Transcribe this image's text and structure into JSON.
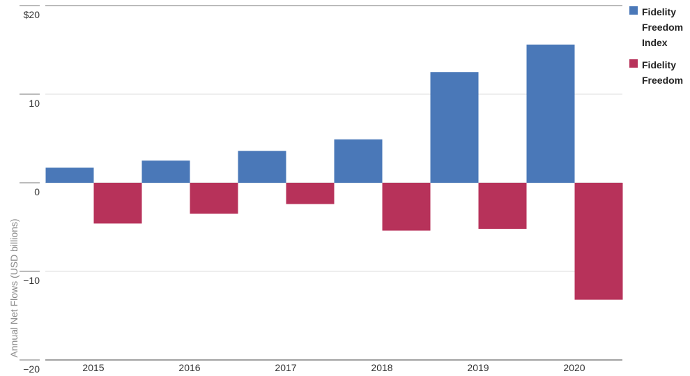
{
  "chart_data": {
    "type": "bar",
    "y_label": "Annual Net Flows (USD billions)",
    "categories": [
      "2015",
      "2016",
      "2017",
      "2018",
      "2019",
      "2020"
    ],
    "series": [
      {
        "name": "Fidelity Freedom Index",
        "color": "#4a78b8",
        "values": [
          1.7,
          2.5,
          3.6,
          4.9,
          12.5,
          15.6
        ]
      },
      {
        "name": "Fidelity Freedom",
        "color": "#b7325a",
        "values": [
          -4.6,
          -3.5,
          -2.4,
          -5.4,
          -5.2,
          -13.2
        ]
      }
    ],
    "ylim": [
      -20,
      20
    ],
    "yticks": [
      {
        "value": -20,
        "label": "−20"
      },
      {
        "value": -10,
        "label": "−10"
      },
      0,
      10,
      {
        "value": 20,
        "label": "$20"
      }
    ],
    "grid": true
  }
}
